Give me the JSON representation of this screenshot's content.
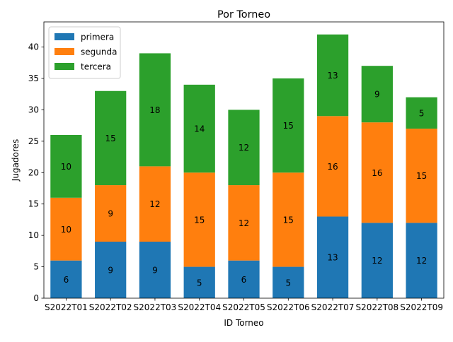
{
  "chart_data": {
    "type": "bar",
    "stacked": true,
    "title": "Por Torneo",
    "xlabel": "ID Torneo",
    "ylabel": "Jugadores",
    "ylim": [
      0,
      44
    ],
    "yticks": [
      0,
      5,
      10,
      15,
      20,
      25,
      30,
      35,
      40
    ],
    "categories": [
      "S2022T01",
      "S2022T02",
      "S2022T03",
      "S2022T04",
      "S2022T05",
      "S2022T06",
      "S2022T07",
      "S2022T08",
      "S2022T09"
    ],
    "series": [
      {
        "name": "primera",
        "color": "#1f77b4",
        "values": [
          6,
          9,
          9,
          5,
          6,
          5,
          13,
          12,
          12
        ]
      },
      {
        "name": "segunda",
        "color": "#ff7f0e",
        "values": [
          10,
          9,
          12,
          15,
          12,
          15,
          16,
          16,
          15
        ]
      },
      {
        "name": "tercera",
        "color": "#2ca02c",
        "values": [
          10,
          15,
          18,
          14,
          12,
          15,
          13,
          9,
          5
        ]
      }
    ],
    "legend": "top-left",
    "grid": false
  }
}
